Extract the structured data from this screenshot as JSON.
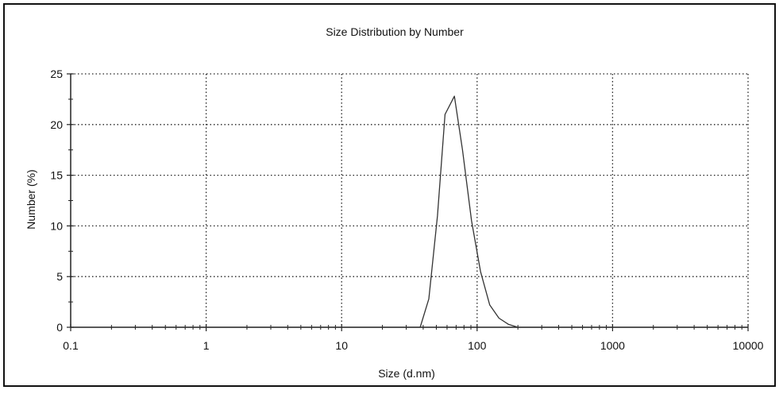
{
  "chart_data": {
    "type": "line",
    "title": "Size Distribution by Number",
    "xlabel": "Size (d.nm)",
    "ylabel": "Number (%)",
    "x_scale": "log",
    "xlim": [
      0.1,
      10000
    ],
    "ylim": [
      0,
      25
    ],
    "x_ticks": [
      {
        "value": 0.1,
        "label": "0.1"
      },
      {
        "value": 1,
        "label": "1"
      },
      {
        "value": 10,
        "label": "10"
      },
      {
        "value": 100,
        "label": "100"
      },
      {
        "value": 1000,
        "label": "1000"
      },
      {
        "value": 10000,
        "label": "10000"
      }
    ],
    "y_ticks": [
      {
        "value": 0,
        "label": "0"
      },
      {
        "value": 5,
        "label": "5"
      },
      {
        "value": 10,
        "label": "10"
      },
      {
        "value": 15,
        "label": "15"
      },
      {
        "value": 20,
        "label": "20"
      },
      {
        "value": 25,
        "label": "25"
      }
    ],
    "grid": true,
    "series": [
      {
        "color": "#333333",
        "points": [
          [
            0.4,
            0
          ],
          [
            38,
            0
          ],
          [
            44,
            2.8
          ],
          [
            51,
            11
          ],
          [
            58,
            21
          ],
          [
            68,
            22.8
          ],
          [
            78,
            17.5
          ],
          [
            91,
            10.5
          ],
          [
            106,
            5.5
          ],
          [
            124,
            2.2
          ],
          [
            145,
            0.9
          ],
          [
            170,
            0.3
          ],
          [
            200,
            0
          ],
          [
            10000,
            0
          ]
        ]
      }
    ]
  }
}
